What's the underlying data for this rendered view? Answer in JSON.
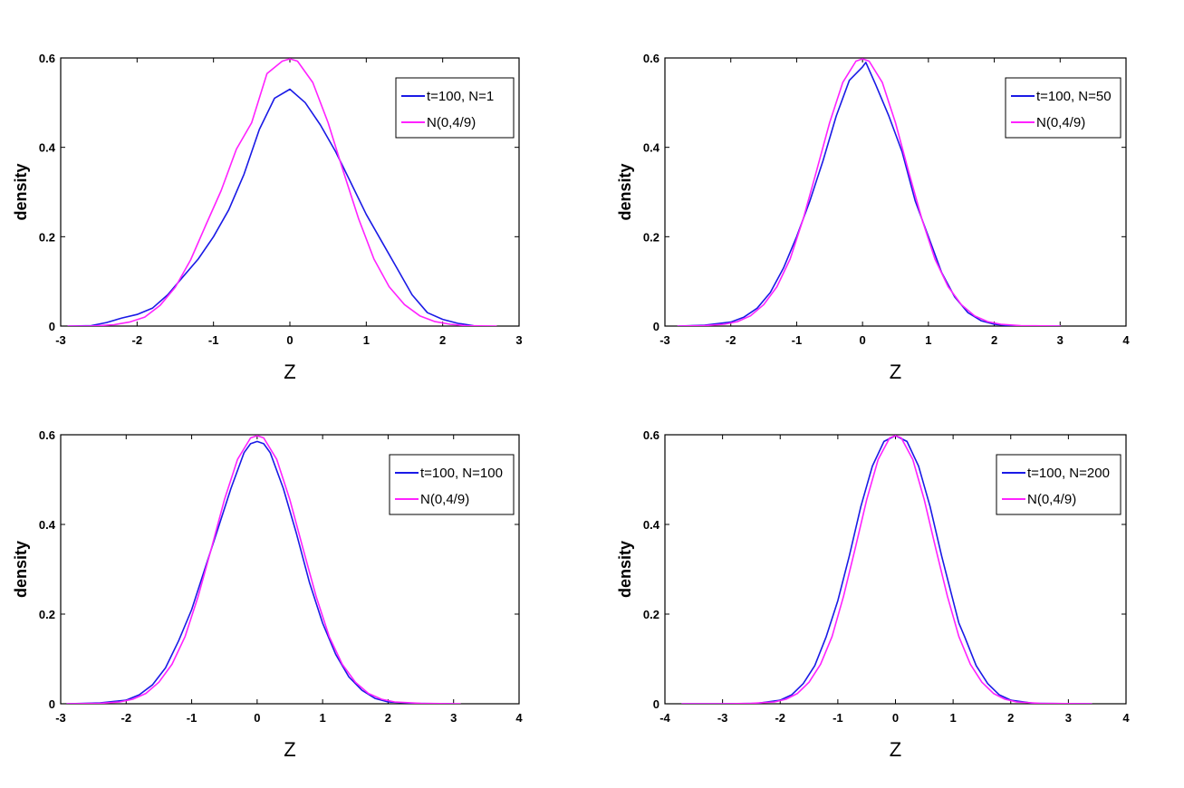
{
  "colors": {
    "series1": "#1a1ae6",
    "series2": "#ff22ff",
    "axis": "#000000",
    "background": "#ffffff"
  },
  "chart_data": [
    {
      "type": "line",
      "xlabel": "Z",
      "ylabel": "density",
      "xlim": [
        -3,
        3
      ],
      "ylim": [
        0,
        0.6
      ],
      "xticks": [
        "-3",
        "-2",
        "-1",
        "0",
        "1",
        "2",
        "3"
      ],
      "yticks": [
        "0",
        "0.2",
        "0.4",
        "0.6"
      ],
      "legend_position": "top-right",
      "series": [
        {
          "name": "t=100, N=1",
          "color": "#1a1ae6",
          "x": [
            -2.9,
            -2.6,
            -2.4,
            -2.2,
            -2.0,
            -1.8,
            -1.6,
            -1.4,
            -1.2,
            -1.0,
            -0.8,
            -0.6,
            -0.4,
            -0.2,
            0.0,
            0.2,
            0.4,
            0.6,
            0.8,
            1.0,
            1.2,
            1.4,
            1.6,
            1.8,
            2.0,
            2.2,
            2.4
          ],
          "y": [
            0.0,
            0.001,
            0.008,
            0.018,
            0.026,
            0.04,
            0.07,
            0.11,
            0.15,
            0.2,
            0.26,
            0.34,
            0.44,
            0.51,
            0.53,
            0.5,
            0.45,
            0.39,
            0.32,
            0.25,
            0.19,
            0.13,
            0.07,
            0.03,
            0.015,
            0.006,
            0.001
          ]
        },
        {
          "name": "N(0,4/9)",
          "color": "#ff22ff",
          "x": [
            -2.9,
            -2.6,
            -2.3,
            -2.1,
            -1.9,
            -1.7,
            -1.5,
            -1.3,
            -1.1,
            -0.9,
            -0.7,
            -0.5,
            -0.3,
            -0.1,
            0.0,
            0.1,
            0.3,
            0.5,
            0.7,
            0.9,
            1.1,
            1.3,
            1.5,
            1.7,
            1.9,
            2.1,
            2.3,
            2.7
          ],
          "y": [
            0.0,
            0.0,
            0.003,
            0.009,
            0.02,
            0.046,
            0.087,
            0.148,
            0.226,
            0.303,
            0.396,
            0.455,
            0.565,
            0.593,
            0.598,
            0.593,
            0.545,
            0.455,
            0.346,
            0.24,
            0.15,
            0.088,
            0.048,
            0.023,
            0.01,
            0.004,
            0.001,
            0.0
          ]
        }
      ]
    },
    {
      "type": "line",
      "xlabel": "Z",
      "ylabel": "density",
      "xlim": [
        -3,
        4
      ],
      "ylim": [
        0,
        0.6
      ],
      "xticks": [
        "-3",
        "-2",
        "-1",
        "0",
        "1",
        "2",
        "3",
        "4"
      ],
      "yticks": [
        "0",
        "0.2",
        "0.4",
        "0.6"
      ],
      "legend_position": "top-right",
      "series": [
        {
          "name": "t=100, N=50",
          "color": "#1a1ae6",
          "x": [
            -2.8,
            -2.4,
            -2.0,
            -1.8,
            -1.6,
            -1.4,
            -1.2,
            -1.0,
            -0.8,
            -0.6,
            -0.4,
            -0.2,
            0.0,
            0.05,
            0.2,
            0.4,
            0.6,
            0.8,
            1.0,
            1.2,
            1.4,
            1.6,
            1.8,
            2.0,
            2.2,
            2.5,
            3.0
          ],
          "y": [
            0.0,
            0.002,
            0.009,
            0.02,
            0.04,
            0.075,
            0.13,
            0.2,
            0.28,
            0.37,
            0.47,
            0.55,
            0.58,
            0.59,
            0.54,
            0.47,
            0.39,
            0.28,
            0.2,
            0.12,
            0.065,
            0.03,
            0.012,
            0.004,
            0.001,
            0.0,
            0.0
          ]
        },
        {
          "name": "N(0,4/9)",
          "color": "#ff22ff",
          "x": [
            -2.8,
            -2.4,
            -2.1,
            -1.9,
            -1.7,
            -1.5,
            -1.3,
            -1.1,
            -0.9,
            -0.7,
            -0.5,
            -0.3,
            -0.1,
            0.0,
            0.1,
            0.3,
            0.5,
            0.7,
            0.9,
            1.1,
            1.3,
            1.5,
            1.7,
            1.9,
            2.1,
            2.4,
            3.0
          ],
          "y": [
            0.0,
            0.001,
            0.004,
            0.01,
            0.023,
            0.048,
            0.088,
            0.15,
            0.24,
            0.346,
            0.455,
            0.545,
            0.593,
            0.598,
            0.593,
            0.545,
            0.455,
            0.346,
            0.24,
            0.15,
            0.088,
            0.048,
            0.023,
            0.01,
            0.004,
            0.001,
            0.0
          ]
        }
      ]
    },
    {
      "type": "line",
      "xlabel": "Z",
      "ylabel": "density",
      "xlim": [
        -3,
        4
      ],
      "ylim": [
        0,
        0.6
      ],
      "xticks": [
        "-3",
        "-2",
        "-1",
        "0",
        "1",
        "2",
        "3",
        "4"
      ],
      "yticks": [
        "0",
        "0.2",
        "0.4",
        "0.6"
      ],
      "legend_position": "top-right",
      "series": [
        {
          "name": "t=100, N=100",
          "color": "#1a1ae6",
          "x": [
            -2.9,
            -2.4,
            -2.0,
            -1.8,
            -1.6,
            -1.4,
            -1.2,
            -1.0,
            -0.8,
            -0.6,
            -0.4,
            -0.2,
            -0.1,
            0.0,
            0.1,
            0.2,
            0.4,
            0.6,
            0.8,
            1.0,
            1.2,
            1.4,
            1.6,
            1.8,
            2.0,
            2.4,
            3.0
          ],
          "y": [
            0.0,
            0.002,
            0.008,
            0.02,
            0.042,
            0.08,
            0.14,
            0.21,
            0.3,
            0.39,
            0.48,
            0.56,
            0.58,
            0.585,
            0.58,
            0.56,
            0.48,
            0.38,
            0.27,
            0.18,
            0.11,
            0.06,
            0.03,
            0.012,
            0.004,
            0.001,
            0.0
          ]
        },
        {
          "name": "N(0,4/9)",
          "color": "#ff22ff",
          "x": [
            -2.9,
            -2.4,
            -2.1,
            -1.9,
            -1.7,
            -1.5,
            -1.3,
            -1.1,
            -0.9,
            -0.7,
            -0.5,
            -0.3,
            -0.1,
            0.0,
            0.1,
            0.3,
            0.5,
            0.7,
            0.9,
            1.1,
            1.3,
            1.5,
            1.7,
            1.9,
            2.1,
            2.5,
            3.1
          ],
          "y": [
            0.0,
            0.001,
            0.004,
            0.01,
            0.023,
            0.048,
            0.088,
            0.15,
            0.24,
            0.346,
            0.455,
            0.545,
            0.593,
            0.598,
            0.593,
            0.545,
            0.455,
            0.346,
            0.24,
            0.15,
            0.088,
            0.048,
            0.023,
            0.01,
            0.004,
            0.001,
            0.0
          ]
        }
      ]
    },
    {
      "type": "line",
      "xlabel": "Z",
      "ylabel": "density",
      "xlim": [
        -4,
        4
      ],
      "ylim": [
        0,
        0.6
      ],
      "xticks": [
        "-4",
        "-3",
        "-2",
        "-1",
        "0",
        "1",
        "2",
        "3",
        "4"
      ],
      "yticks": [
        "0",
        "0.2",
        "0.4",
        "0.6"
      ],
      "legend_position": "top-right",
      "series": [
        {
          "name": "t=100, N=200",
          "color": "#1a1ae6",
          "x": [
            -3.7,
            -3.0,
            -2.4,
            -2.0,
            -1.8,
            -1.6,
            -1.4,
            -1.2,
            -1.0,
            -0.8,
            -0.6,
            -0.4,
            -0.2,
            0.0,
            0.2,
            0.4,
            0.6,
            0.8,
            1.0,
            1.1,
            1.2,
            1.4,
            1.6,
            1.8,
            2.0,
            2.4,
            3.4
          ],
          "y": [
            0.0,
            0.0,
            0.001,
            0.008,
            0.02,
            0.045,
            0.085,
            0.15,
            0.23,
            0.33,
            0.44,
            0.53,
            0.585,
            0.598,
            0.585,
            0.53,
            0.44,
            0.33,
            0.23,
            0.18,
            0.15,
            0.085,
            0.045,
            0.02,
            0.008,
            0.001,
            0.0
          ]
        },
        {
          "name": "N(0,4/9)",
          "color": "#ff22ff",
          "x": [
            -3.7,
            -3.0,
            -2.5,
            -2.1,
            -1.9,
            -1.7,
            -1.5,
            -1.3,
            -1.1,
            -0.9,
            -0.7,
            -0.5,
            -0.3,
            -0.1,
            0.0,
            0.1,
            0.3,
            0.5,
            0.7,
            0.9,
            1.1,
            1.3,
            1.5,
            1.7,
            1.9,
            2.1,
            2.5,
            3.4
          ],
          "y": [
            0.0,
            0.0,
            0.001,
            0.004,
            0.01,
            0.023,
            0.048,
            0.088,
            0.15,
            0.24,
            0.346,
            0.455,
            0.545,
            0.593,
            0.598,
            0.593,
            0.545,
            0.455,
            0.346,
            0.24,
            0.15,
            0.088,
            0.048,
            0.023,
            0.01,
            0.004,
            0.001,
            0.0
          ]
        }
      ]
    }
  ]
}
